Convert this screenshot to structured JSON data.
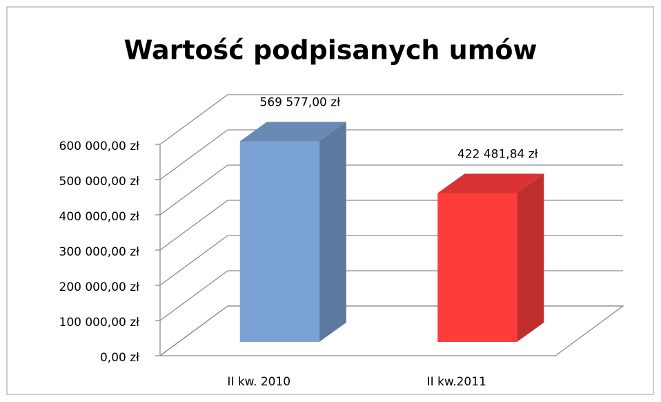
{
  "chart_data": {
    "type": "bar",
    "title": "Wartość podpisanych umów",
    "categories": [
      "II kw. 2010",
      "II kw.2011"
    ],
    "values": [
      569577,
      422481.84
    ],
    "value_labels": [
      "569 577,00 zł",
      "422 481,84 zł"
    ],
    "colors": [
      "#7ba2d4",
      "#ff3c3c"
    ],
    "ylim": [
      0,
      600000
    ],
    "yticks": [
      {
        "value": 0,
        "label": "0,00 zł"
      },
      {
        "value": 100000,
        "label": "100 000,00 zł"
      },
      {
        "value": 200000,
        "label": "200 000,00 zł"
      },
      {
        "value": 300000,
        "label": "300 000,00 zł"
      },
      {
        "value": 400000,
        "label": "400 000,00 zł"
      },
      {
        "value": 500000,
        "label": "500 000,00 zł"
      },
      {
        "value": 600000,
        "label": "600 000,00 zł"
      }
    ],
    "grid": true
  }
}
